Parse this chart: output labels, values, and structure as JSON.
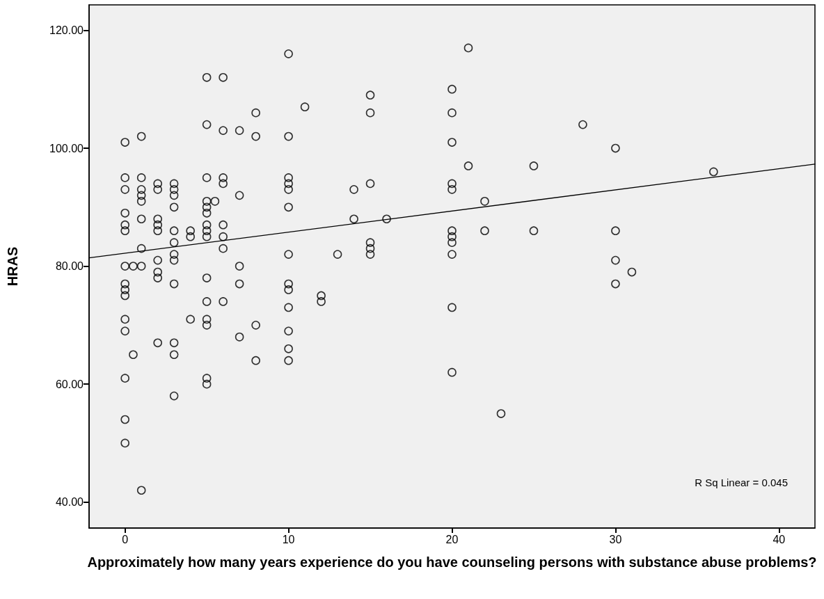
{
  "chart_data": {
    "type": "scatter",
    "xlabel": "Approximately how many years experience do you have counseling persons with substance abuse problems?",
    "ylabel": "HRAS",
    "xlim": [
      -2.2,
      42.2
    ],
    "ylim": [
      35.6,
      124.3
    ],
    "xticks": [
      0,
      10,
      20,
      30,
      40
    ],
    "yticks": [
      {
        "value": 40,
        "label": "40.00"
      },
      {
        "value": 60,
        "label": "60.00"
      },
      {
        "value": 80,
        "label": "80.00"
      },
      {
        "value": 100,
        "label": "100.00"
      },
      {
        "value": 120,
        "label": "120.00"
      }
    ],
    "grid": false,
    "marker": "circle",
    "annotations": [
      "R Sq Linear = 0.045"
    ],
    "series": [
      {
        "color": "#000000",
        "x": [
          0,
          0,
          0,
          0,
          0,
          0,
          0,
          0,
          0,
          0,
          0,
          0,
          0,
          0,
          0,
          0.5,
          0.5,
          1,
          1,
          1,
          1,
          1,
          1,
          1,
          1,
          1,
          2,
          2,
          2,
          2,
          2,
          2,
          2,
          2,
          2,
          3,
          3,
          3,
          3,
          3,
          3,
          3,
          3,
          3,
          3,
          3,
          3,
          4,
          4,
          4,
          5,
          5,
          5,
          5,
          5,
          5,
          5,
          5,
          5,
          5,
          5,
          5,
          5,
          5,
          5,
          5.5,
          6,
          6,
          6,
          6,
          6,
          6,
          6,
          6,
          7,
          7,
          7,
          7,
          7,
          8,
          8,
          8,
          8,
          10,
          10,
          10,
          10,
          10,
          10,
          10,
          10,
          10,
          10,
          10,
          10,
          10,
          11,
          12,
          12,
          13,
          14,
          14,
          15,
          15,
          15,
          15,
          15,
          15,
          16,
          20,
          20,
          20,
          20,
          20,
          20,
          20,
          20,
          20,
          20,
          20,
          21,
          21,
          22,
          22,
          23,
          25,
          25,
          28,
          30,
          30,
          30,
          30,
          31,
          36
        ],
        "values": [
          101,
          95,
          93,
          89,
          87,
          86,
          80,
          77,
          76,
          75,
          71,
          69,
          61,
          54,
          50,
          80,
          65,
          102,
          95,
          93,
          92,
          91,
          88,
          83,
          80,
          42,
          94,
          93,
          88,
          87,
          86,
          81,
          79,
          78,
          67,
          94,
          93,
          92,
          90,
          86,
          84,
          82,
          81,
          77,
          67,
          65,
          58,
          86,
          85,
          71,
          112,
          104,
          95,
          91,
          90,
          89,
          87,
          86,
          85,
          78,
          74,
          71,
          70,
          61,
          60,
          91,
          112,
          103,
          95,
          94,
          87,
          85,
          83,
          74,
          103,
          92,
          80,
          77,
          68,
          106,
          102,
          70,
          64,
          116,
          102,
          95,
          94,
          93,
          90,
          82,
          77,
          76,
          73,
          69,
          66,
          64,
          107,
          75,
          74,
          82,
          93,
          88,
          109,
          106,
          94,
          84,
          83,
          82,
          88,
          110,
          106,
          101,
          94,
          93,
          86,
          85,
          84,
          82,
          73,
          62,
          117,
          97,
          91,
          86,
          55,
          97,
          86,
          104,
          100,
          86,
          81,
          77,
          79,
          96
        ]
      },
      {
        "type": "line",
        "color": "#000000",
        "line_style": "solid",
        "marker": "none",
        "x": [
          -2.2,
          42.2
        ],
        "values": [
          81.4,
          97.3
        ]
      }
    ]
  }
}
